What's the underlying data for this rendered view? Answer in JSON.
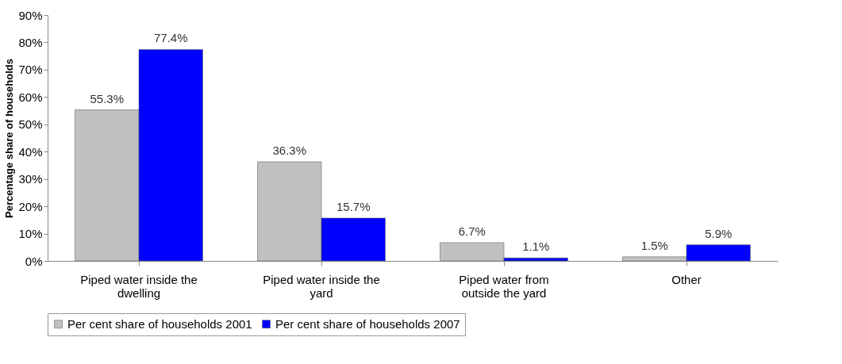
{
  "chart_data": {
    "type": "bar",
    "ylabel": "Percentage share of households",
    "categories": [
      "Piped water inside the\ndwelling",
      "Piped water inside the\nyard",
      "Piped water from\noutside the yard",
      "Other"
    ],
    "series": [
      {
        "name": "Per cent share of households 2001",
        "color": "#c0c0c0",
        "values": [
          55.3,
          36.3,
          6.7,
          1.5
        ],
        "value_labels": [
          "55.3%",
          "36.3%",
          "6.7%",
          "1.5%"
        ]
      },
      {
        "name": "Per cent share of households 2007",
        "color": "#0000ff",
        "values": [
          77.4,
          15.7,
          1.1,
          5.9
        ],
        "value_labels": [
          "77.4%",
          "15.7%",
          "1.1%",
          "5.9%"
        ]
      }
    ],
    "ylim": [
      0,
      90
    ],
    "yticks": [
      {
        "value": 0,
        "label": "0%"
      },
      {
        "value": 10,
        "label": "10%"
      },
      {
        "value": 20,
        "label": "20%"
      },
      {
        "value": 30,
        "label": "30%"
      },
      {
        "value": 40,
        "label": "40%"
      },
      {
        "value": 50,
        "label": "50%"
      },
      {
        "value": 60,
        "label": "60%"
      },
      {
        "value": 70,
        "label": "70%"
      },
      {
        "value": 80,
        "label": "80%"
      },
      {
        "value": 90,
        "label": "90%"
      }
    ],
    "grid": false,
    "legend": "bottom"
  }
}
